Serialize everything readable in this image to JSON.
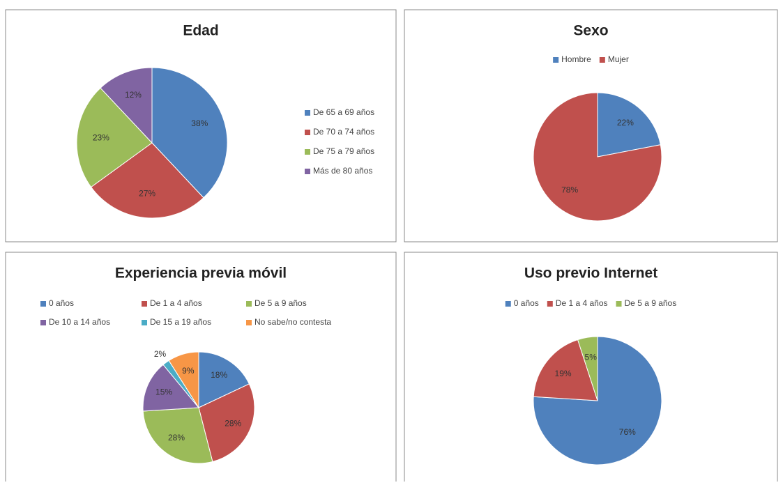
{
  "chart_data": [
    {
      "type": "pie",
      "title": "Edad",
      "legend": "right",
      "categories": [
        "De 65 a 69 años",
        "De 70 a 74 años",
        "De 75 a 79 años",
        "Más de 80 años"
      ],
      "values": [
        38,
        27,
        23,
        12
      ],
      "value_labels": [
        "38%",
        "27%",
        "23%",
        "12%"
      ],
      "colors": [
        "#4f81bd",
        "#c0504d",
        "#9bbb59",
        "#8064a2"
      ]
    },
    {
      "type": "pie",
      "title": "Sexo",
      "legend": "top",
      "categories": [
        "Hombre",
        "Mujer"
      ],
      "values": [
        22,
        78
      ],
      "value_labels": [
        "22%",
        "78%"
      ],
      "colors": [
        "#4f81bd",
        "#c0504d"
      ]
    },
    {
      "type": "pie",
      "title": "Experiencia previa móvil",
      "legend": "top",
      "categories": [
        "0 años",
        "De 1 a 4 años",
        "De 5 a 9 años",
        "De 10 a 14 años",
        "De 15 a 19 años",
        "No sabe/no contesta"
      ],
      "values": [
        18,
        28,
        28,
        15,
        2,
        9
      ],
      "value_labels": [
        "18%",
        "28%",
        "28%",
        "15%",
        "2%",
        "9%"
      ],
      "colors": [
        "#4f81bd",
        "#c0504d",
        "#9bbb59",
        "#8064a2",
        "#4bacc6",
        "#f79646"
      ]
    },
    {
      "type": "pie",
      "title": "Uso previo Internet",
      "legend": "top",
      "categories": [
        "0 años",
        "De 1 a 4 años",
        "De 5 a 9 años"
      ],
      "values": [
        76,
        19,
        5
      ],
      "value_labels": [
        "76%",
        "19%",
        "5%"
      ],
      "colors": [
        "#4f81bd",
        "#c0504d",
        "#9bbb59"
      ]
    }
  ]
}
